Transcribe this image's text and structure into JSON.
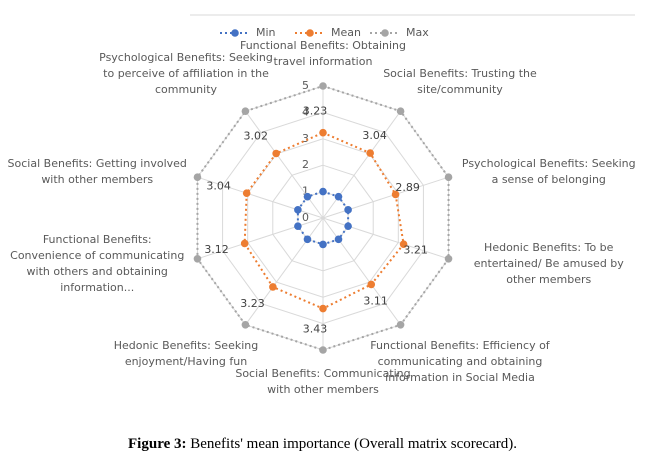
{
  "chart_data": {
    "type": "radar",
    "categories": [
      "Functional Benefits: Obtaining travel information",
      "Social Benefits: Trusting the site/community",
      "Psychological Benefits: Seeking a sense of belonging",
      "Hedonic Benefits: To be entertained/ Be amused by other members",
      "Functional Benefits: Efficiency of communicating and obtaining information in Social Media",
      "Social Benefits: Communicating with other members",
      "Hedonic Benefits: Seeking enjoyment/Having fun",
      "Functional Benefits: Convenience of communicating with others and obtaining information...",
      "Social Benefits: Getting involved with other members",
      "Psychological Benefits: Seeking to perceive of affiliation in the community"
    ],
    "series": [
      {
        "name": "Min",
        "color": "#4472c4",
        "values": [
          1,
          1,
          1,
          1,
          1,
          1,
          1,
          1,
          1,
          1
        ]
      },
      {
        "name": "Mean",
        "color": "#ed7d31",
        "values": [
          3.23,
          3.04,
          2.89,
          3.21,
          3.11,
          3.43,
          3.23,
          3.12,
          3.04,
          3.02
        ],
        "show_labels": true
      },
      {
        "name": "Max",
        "color": "#a5a5a5",
        "values": [
          5,
          5,
          5,
          5,
          5,
          5,
          5,
          5,
          5,
          5
        ]
      }
    ],
    "rlim": [
      0,
      5
    ],
    "rticks": [
      0,
      1,
      2,
      3,
      4,
      5
    ],
    "grid": true,
    "legend": "top"
  },
  "caption": {
    "label": "Figure 3:",
    "text": "Benefits' mean importance (Overall matrix scorecard)."
  }
}
